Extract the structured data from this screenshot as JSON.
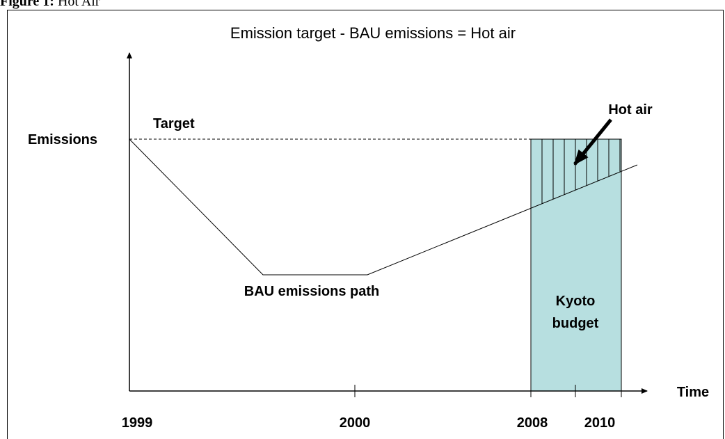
{
  "caption": {
    "label": "Figure 1:",
    "text": "Hot Air"
  },
  "title": "Emission target - BAU emissions = Hot air",
  "labels": {
    "y_axis": "Emissions",
    "target": "Target",
    "hot_air": "Hot air",
    "kyoto": [
      "Kyoto",
      "budget"
    ],
    "bau": "BAU emissions path",
    "x_axis": "Time"
  },
  "ticks": [
    "1999",
    "2000",
    "2008",
    "2010"
  ]
}
